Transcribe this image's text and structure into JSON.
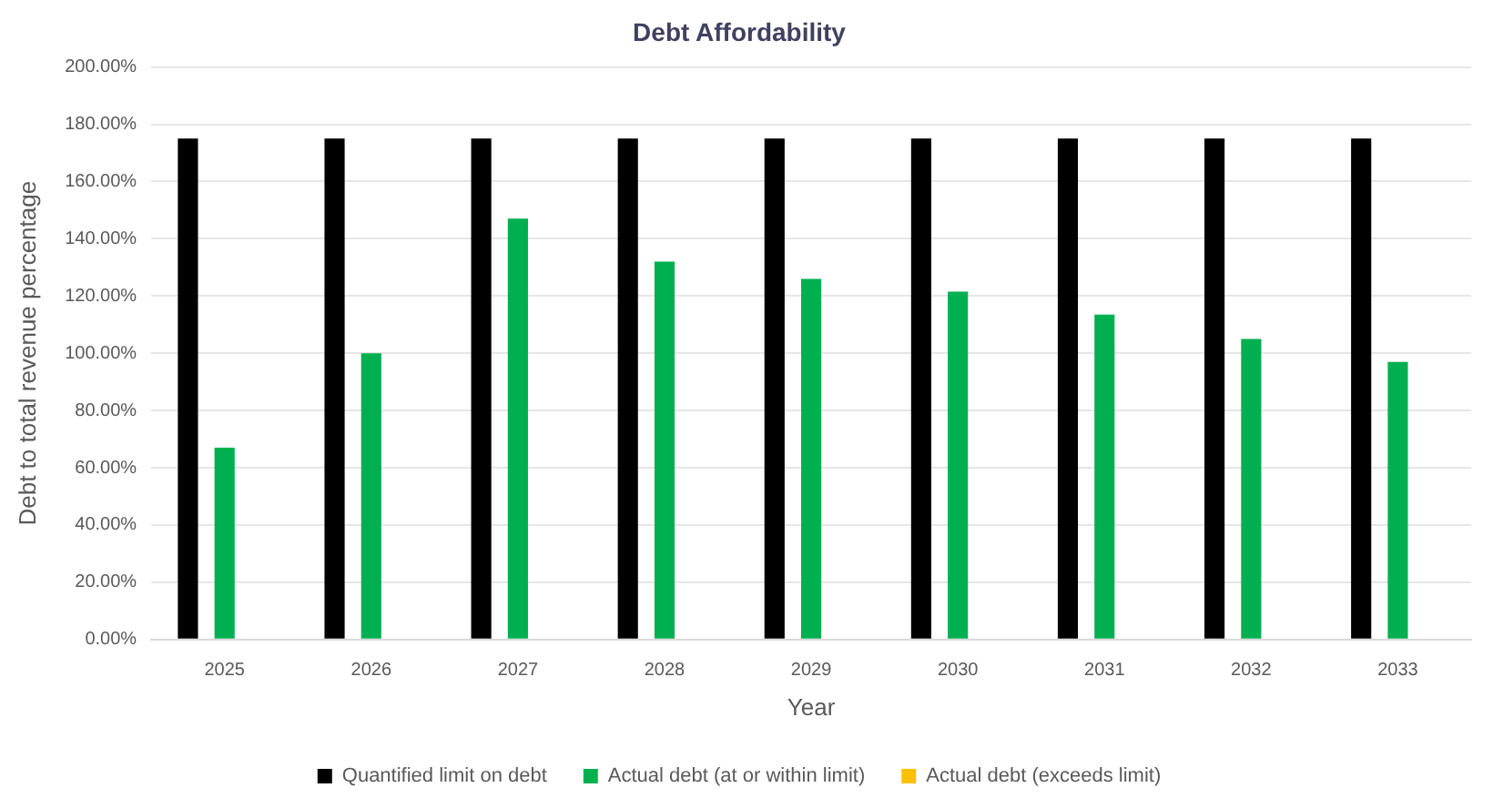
{
  "chart_data": {
    "type": "bar",
    "title": "Debt Affordability",
    "xlabel": "Year",
    "ylabel": "Debt to total revenue percentage",
    "categories": [
      "2025",
      "2026",
      "2027",
      "2028",
      "2029",
      "2030",
      "2031",
      "2032",
      "2033"
    ],
    "series": [
      {
        "name": "Quantified limit on debt",
        "color": "#000000",
        "values": [
          175,
          175,
          175,
          175,
          175,
          175,
          175,
          175,
          175
        ]
      },
      {
        "name": "Actual debt (at or within limit)",
        "color": "#00b050",
        "values": [
          67,
          100,
          147,
          132,
          126,
          121.5,
          113.5,
          105,
          97
        ]
      },
      {
        "name": "Actual debt (exceeds limit)",
        "color": "#ffc000",
        "values": [
          null,
          null,
          null,
          null,
          null,
          null,
          null,
          null,
          null
        ]
      }
    ],
    "ylim": [
      0,
      200
    ],
    "yticks": [
      {
        "value": 0,
        "label": "0.00%"
      },
      {
        "value": 20,
        "label": "20.00%"
      },
      {
        "value": 40,
        "label": "40.00%"
      },
      {
        "value": 60,
        "label": "60.00%"
      },
      {
        "value": 80,
        "label": "80.00%"
      },
      {
        "value": 100,
        "label": "100.00%"
      },
      {
        "value": 120,
        "label": "120.00%"
      },
      {
        "value": 140,
        "label": "140.00%"
      },
      {
        "value": 160,
        "label": "160.00%"
      },
      {
        "value": 180,
        "label": "180.00%"
      },
      {
        "value": 200,
        "label": "200.00%"
      }
    ],
    "grid": "y",
    "legend": "bottom"
  }
}
